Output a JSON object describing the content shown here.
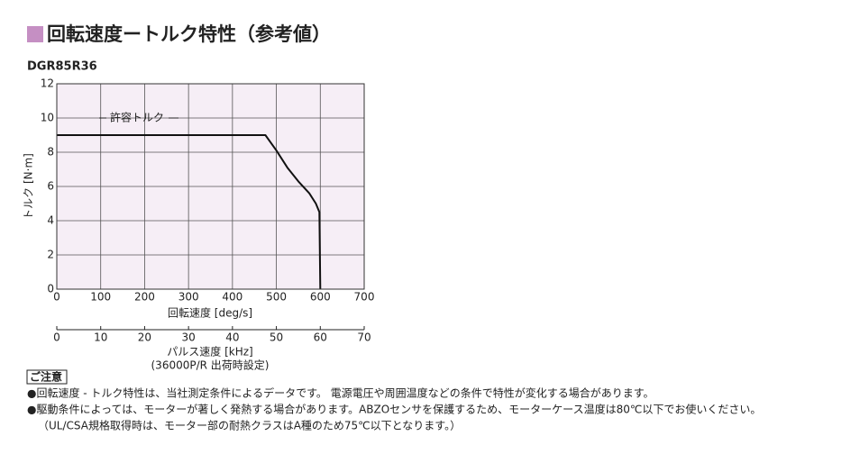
{
  "chart_data": {
    "type": "line",
    "title": "回転速度ートルク特性（参考値）",
    "subtitle": "DGR85R36",
    "x_label": "回転速度 [deg/s]",
    "y_label": "トルク [N·m]",
    "annotation": "許容トルク",
    "x": [
      0,
      475,
      500,
      525,
      550,
      575,
      590,
      598,
      600
    ],
    "values": [
      9,
      9,
      8.1,
      7.1,
      6.3,
      5.6,
      5,
      4.5,
      0
    ],
    "color": "#111111",
    "xlim": [
      0,
      700
    ],
    "xticks": [
      0,
      100,
      200,
      300,
      400,
      500,
      600,
      700
    ],
    "ylim": [
      0,
      12
    ],
    "yticks": [
      0,
      2,
      4,
      6,
      8,
      10,
      12
    ],
    "x2lim": [
      0,
      70
    ],
    "x2ticks": [
      0,
      10,
      20,
      30,
      40,
      50,
      60,
      70
    ],
    "x2_label": "パルス速度 [kHz]",
    "x2_sublabel": "(36000P/R 出荷時設定)",
    "grid": true,
    "background": "#f6eef6"
  },
  "notes": {
    "heading": "ご注意",
    "items": [
      "●回転速度 - トルク特性は、当社測定条件によるデータです。 電源電圧や周囲温度などの条件で特性が変化する場合があります。",
      "●駆動条件によっては、モーターが著しく発熱する場合があります。ABZOセンサを保護するため、モーターケース温度は80℃以下でお使いください。",
      "（UL/CSA規格取得時は、モーター部の耐熱クラスはA種のため75℃以下となります。）"
    ]
  }
}
